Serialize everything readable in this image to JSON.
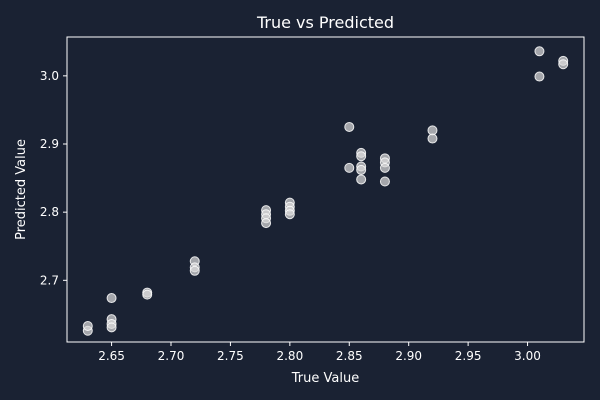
{
  "chart_data": {
    "type": "scatter",
    "title": "True vs Predicted",
    "xlabel": "True Value",
    "ylabel": "Predicted Value",
    "xlim": [
      2.6125,
      3.0475
    ],
    "ylim": [
      2.6095,
      3.057
    ],
    "x_ticks": [
      "2.65",
      "2.70",
      "2.75",
      "2.80",
      "2.85",
      "2.90",
      "2.95",
      "3.00"
    ],
    "y_ticks": [
      "2.7",
      "2.8",
      "2.9",
      "3.0"
    ],
    "grid": false,
    "colors": {
      "background": "#1a2233",
      "axes": "#ffffff",
      "point_fill": "#d9d9d9",
      "point_edge": "#ffffff"
    },
    "points": [
      {
        "x": 2.63,
        "y": 2.626
      },
      {
        "x": 2.63,
        "y": 2.633
      },
      {
        "x": 2.65,
        "y": 2.674
      },
      {
        "x": 2.65,
        "y": 2.643
      },
      {
        "x": 2.65,
        "y": 2.636
      },
      {
        "x": 2.65,
        "y": 2.631
      },
      {
        "x": 2.68,
        "y": 2.682
      },
      {
        "x": 2.68,
        "y": 2.679
      },
      {
        "x": 2.72,
        "y": 2.728
      },
      {
        "x": 2.72,
        "y": 2.719
      },
      {
        "x": 2.72,
        "y": 2.714
      },
      {
        "x": 2.78,
        "y": 2.803
      },
      {
        "x": 2.78,
        "y": 2.797
      },
      {
        "x": 2.78,
        "y": 2.791
      },
      {
        "x": 2.78,
        "y": 2.784
      },
      {
        "x": 2.8,
        "y": 2.814
      },
      {
        "x": 2.8,
        "y": 2.808
      },
      {
        "x": 2.8,
        "y": 2.802
      },
      {
        "x": 2.8,
        "y": 2.797
      },
      {
        "x": 2.85,
        "y": 2.925
      },
      {
        "x": 2.85,
        "y": 2.865
      },
      {
        "x": 2.86,
        "y": 2.887
      },
      {
        "x": 2.86,
        "y": 2.882
      },
      {
        "x": 2.86,
        "y": 2.867
      },
      {
        "x": 2.86,
        "y": 2.862
      },
      {
        "x": 2.86,
        "y": 2.848
      },
      {
        "x": 2.88,
        "y": 2.879
      },
      {
        "x": 2.88,
        "y": 2.873
      },
      {
        "x": 2.88,
        "y": 2.865
      },
      {
        "x": 2.88,
        "y": 2.845
      },
      {
        "x": 2.92,
        "y": 2.92
      },
      {
        "x": 2.92,
        "y": 2.908
      },
      {
        "x": 3.01,
        "y": 3.036
      },
      {
        "x": 3.01,
        "y": 2.999
      },
      {
        "x": 3.03,
        "y": 3.022
      },
      {
        "x": 3.03,
        "y": 3.017
      }
    ]
  }
}
